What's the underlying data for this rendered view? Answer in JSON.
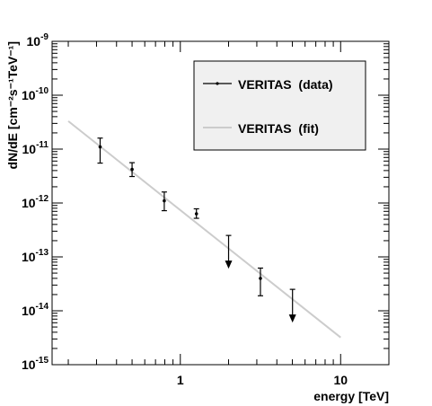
{
  "chart_data": {
    "type": "scatter",
    "xlabel": "energy [TeV]",
    "ylabel": "dN/dE [cm⁻²s⁻¹TeV⁻¹]",
    "x_scale": "log",
    "y_scale": "log",
    "xlim": [
      0.1585,
      20
    ],
    "ylim": [
      1e-15,
      1e-09
    ],
    "x_ticks": [
      {
        "value": 1,
        "label": "1"
      },
      {
        "value": 10,
        "label": "10"
      }
    ],
    "y_ticks": [
      {
        "value": 1e-09,
        "base": "10",
        "exp": "-9"
      },
      {
        "value": 1e-10,
        "base": "10",
        "exp": "-10"
      },
      {
        "value": 1e-11,
        "base": "10",
        "exp": "-11"
      },
      {
        "value": 1e-12,
        "base": "10",
        "exp": "-12"
      },
      {
        "value": 1e-13,
        "base": "10",
        "exp": "-13"
      },
      {
        "value": 1e-14,
        "base": "10",
        "exp": "-14"
      },
      {
        "value": 1e-15,
        "base": "10",
        "exp": "-15"
      }
    ],
    "legend_position": "top-right",
    "series": [
      {
        "name": "VERITAS  (data)",
        "kind": "points",
        "color": "#000000",
        "points": [
          {
            "x": 0.316,
            "y": 1.1e-11,
            "ylo": 5.5e-12,
            "yhi": 1.6e-11
          },
          {
            "x": 0.5,
            "y": 4.2e-12,
            "ylo": 3.1e-12,
            "yhi": 5.6e-12
          },
          {
            "x": 0.794,
            "y": 1.1e-12,
            "ylo": 7.2e-13,
            "yhi": 1.6e-12
          },
          {
            "x": 1.26,
            "y": 6.3e-13,
            "ylo": 5.2e-13,
            "yhi": 7.8e-13
          },
          {
            "x": 3.16,
            "y": 4e-14,
            "ylo": 1.9e-14,
            "yhi": 6.2e-14
          }
        ],
        "upper_limits": [
          {
            "x": 2.0,
            "y": 2.5e-13
          },
          {
            "x": 5.01,
            "y": 2.5e-14
          }
        ]
      },
      {
        "name": "VERITAS  (fit)",
        "kind": "line",
        "color": "#cccccc",
        "points": [
          {
            "x": 0.2,
            "y": 3.3e-11
          },
          {
            "x": 10,
            "y": 3.2e-15
          }
        ]
      }
    ]
  }
}
